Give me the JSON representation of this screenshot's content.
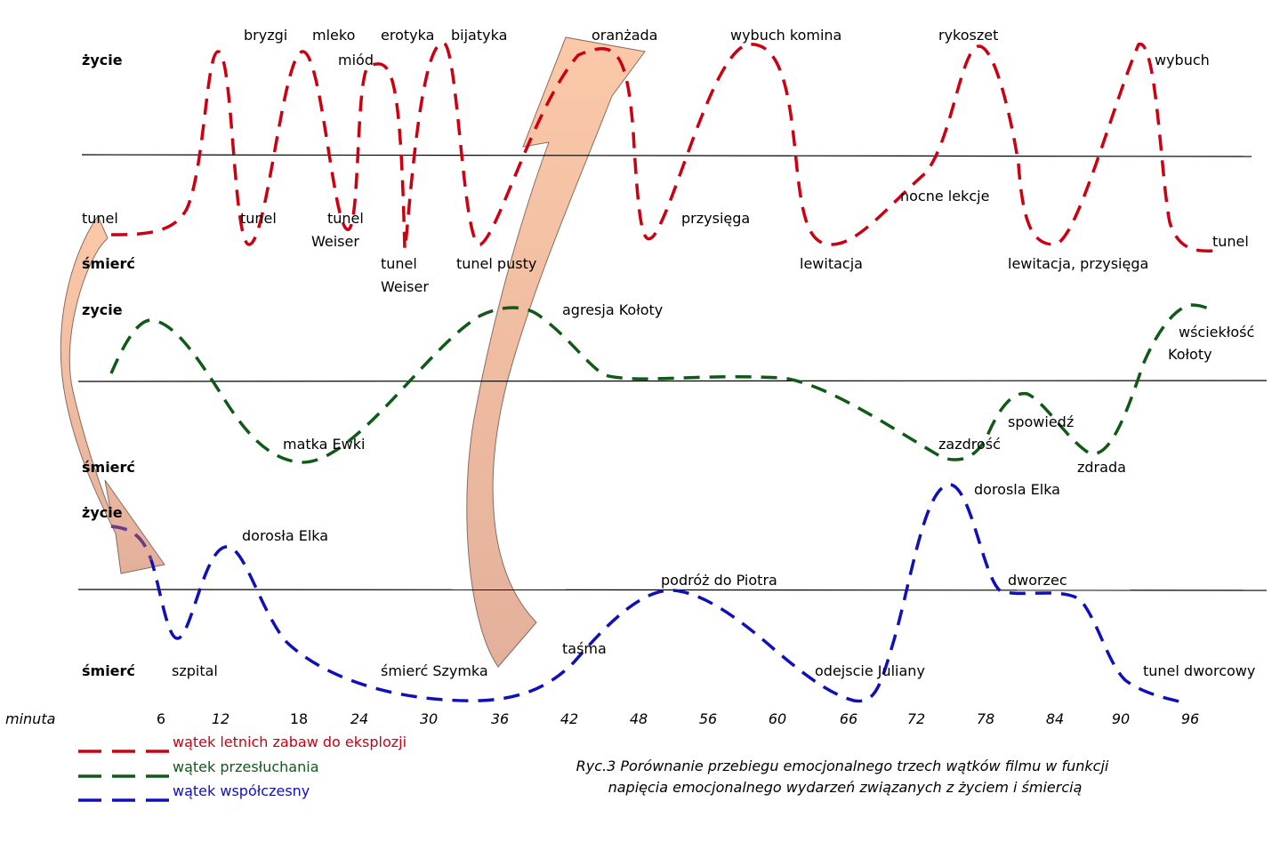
{
  "chart_data": {
    "type": "line",
    "x_axis": {
      "label": "minuta",
      "ticks": [
        6,
        12,
        18,
        24,
        30,
        36,
        42,
        48,
        56,
        60,
        66,
        72,
        78,
        84,
        90,
        96
      ],
      "italic_ticks": [
        12,
        24,
        30,
        36,
        42,
        48,
        56,
        60,
        66,
        72,
        78,
        84,
        90,
        96
      ]
    },
    "panels": [
      {
        "id": "summer",
        "label_top": "życie",
        "label_bottom": "śmierć",
        "color": "#cc0011",
        "legend": "wątek letnich zabaw do eksplozji",
        "annotations": [
          "tunel",
          "bryzgi",
          "tunel",
          "mleko",
          "miód",
          "tunel",
          "Weiser",
          "erotyka",
          "tunel",
          "Weiser",
          "bijatyka",
          "tunel pusty",
          "oranżada",
          "przysięga",
          "wybuch komina",
          "lewitacja",
          "nocne lekcje",
          "rykoszet",
          "lewitacja, przysięga",
          "wybuch",
          "tunel"
        ]
      },
      {
        "id": "interrogation",
        "label_top": "zycie",
        "label_bottom": "śmierć",
        "color": "#0f5a17",
        "legend": "wątek przesłuchania",
        "annotations": [
          "matka Ewki",
          "agresja  Kołoty",
          "zazdrość",
          "spowiedź",
          "zdrada",
          "wściekłość",
          "Kołoty"
        ]
      },
      {
        "id": "present",
        "label_top": "życie",
        "label_bottom": "śmierć",
        "color": "#1010b8",
        "legend": "wątek współczesny",
        "annotations": [
          "dorosła Elka",
          "szpital",
          "śmierć Szymka",
          "taśma",
          "podróż do Piotra",
          "odejscie Juliany",
          "dorosla Elka",
          "dworzec",
          "tunel dworcowy"
        ]
      }
    ],
    "caption": [
      "Ryc.3 Porównanie przebiegu emocjonalnego trzech wątków filmu w funkcji",
      "napięcia emocjonalnego wydarzeń związanych z życiem i śmiercią"
    ],
    "connector_arrow_color": "#f5b18e"
  }
}
